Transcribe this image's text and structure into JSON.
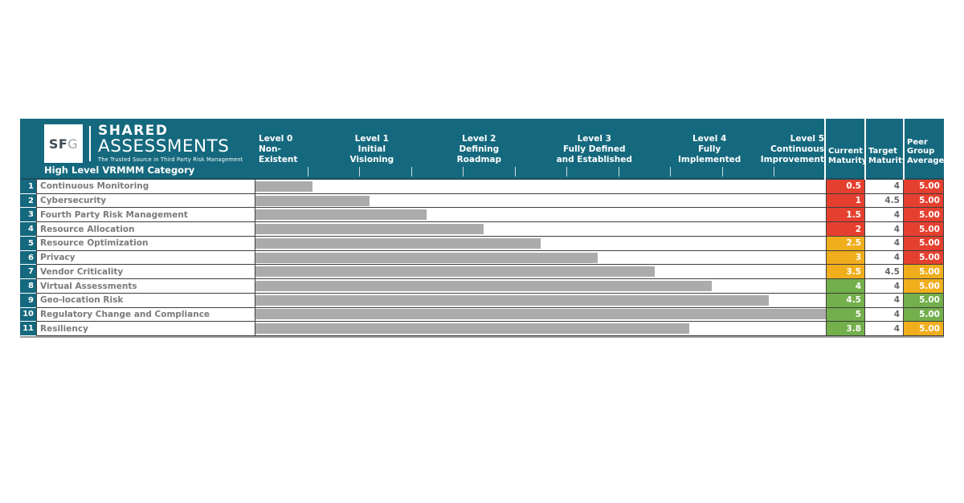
{
  "brand": {
    "logo_sf": "SF",
    "logo_g": "G",
    "title_line1": "SHARED",
    "title_line2": "ASSESSMENTS",
    "tagline": "The Trusted Source in Third Party Risk Management"
  },
  "header": {
    "category_label": "High Level VRMMM Category",
    "levels": [
      {
        "lines": [
          "Level 0",
          "Non-",
          "Existent"
        ]
      },
      {
        "lines": [
          "Level 1",
          "Initial",
          "Visioning"
        ]
      },
      {
        "lines": [
          "Level 2",
          "Defining",
          "Roadmap"
        ]
      },
      {
        "lines": [
          "Level 3",
          "Fully Defined",
          "and Established"
        ]
      },
      {
        "lines": [
          "Level 4",
          "Fully",
          "Implemented"
        ]
      },
      {
        "lines": [
          "Level 5",
          "Continuous",
          "Improvement"
        ]
      }
    ],
    "value_columns": [
      {
        "lines": [
          "Current",
          "Maturity"
        ]
      },
      {
        "lines": [
          "Target",
          "Maturity"
        ]
      },
      {
        "lines": [
          "Peer",
          "Group",
          "Average"
        ]
      }
    ]
  },
  "rows": [
    {
      "num": "1",
      "category": "Continuous Monitoring",
      "current": "0.5",
      "current_value": 0.5,
      "current_color": "red",
      "target": "4",
      "peer": "5.00",
      "peer_color": "red"
    },
    {
      "num": "2",
      "category": "Cybersecurity",
      "current": "1",
      "current_value": 1.0,
      "current_color": "red",
      "target": "4.5",
      "peer": "5.00",
      "peer_color": "red"
    },
    {
      "num": "3",
      "category": "Fourth Party Risk Management",
      "current": "1.5",
      "current_value": 1.5,
      "current_color": "red",
      "target": "4",
      "peer": "5.00",
      "peer_color": "red"
    },
    {
      "num": "4",
      "category": "Resource Allocation",
      "current": "2",
      "current_value": 2.0,
      "current_color": "red",
      "target": "4",
      "peer": "5.00",
      "peer_color": "red"
    },
    {
      "num": "5",
      "category": "Resource Optimization",
      "current": "2.5",
      "current_value": 2.5,
      "current_color": "amber",
      "target": "4",
      "peer": "5.00",
      "peer_color": "red"
    },
    {
      "num": "6",
      "category": "Privacy",
      "current": "3",
      "current_value": 3.0,
      "current_color": "amber",
      "target": "4",
      "peer": "5.00",
      "peer_color": "red"
    },
    {
      "num": "7",
      "category": "Vendor Criticality",
      "current": "3.5",
      "current_value": 3.5,
      "current_color": "amber",
      "target": "4.5",
      "peer": "5.00",
      "peer_color": "amber"
    },
    {
      "num": "8",
      "category": "Virtual Assessments",
      "current": "4",
      "current_value": 4.0,
      "current_color": "green",
      "target": "4",
      "peer": "5.00",
      "peer_color": "amber"
    },
    {
      "num": "9",
      "category": "Geo-location Risk",
      "current": "4.5",
      "current_value": 4.5,
      "current_color": "green",
      "target": "4",
      "peer": "5.00",
      "peer_color": "green"
    },
    {
      "num": "10",
      "category": "Regulatory Change and Compliance",
      "current": "5",
      "current_value": 5.0,
      "current_color": "green",
      "target": "4",
      "peer": "5.00",
      "peer_color": "green"
    },
    {
      "num": "11",
      "category": "Resiliency",
      "current": "3.8",
      "current_value": 3.8,
      "current_color": "green",
      "target": "4",
      "peer": "5.00",
      "peer_color": "amber"
    }
  ],
  "colors": {
    "teal": "#15697E",
    "header_border": "#1C4E5E",
    "red": "#E5402F",
    "amber": "#F0AE1D",
    "green": "#73AF4B",
    "bar_gray": "#ABABAB",
    "grid_line": "#3D3D3D",
    "category_text": "#7A7A7A",
    "target_text": "#666666",
    "tick": "#CFDFE4",
    "logo_sf": "#3E4B57",
    "logo_g": "#99A1A8",
    "bottom_line": "#9B9B9B"
  },
  "chart_data": {
    "type": "bar",
    "orientation": "horizontal",
    "title": "High Level VRMMM Category",
    "categories": [
      "Continuous Monitoring",
      "Cybersecurity",
      "Fourth Party Risk Management",
      "Resource Allocation",
      "Resource Optimization",
      "Privacy",
      "Vendor Criticality",
      "Virtual Assessments",
      "Geo-location Risk",
      "Regulatory Change and Compliance",
      "Resiliency"
    ],
    "series": [
      {
        "name": "Current Maturity",
        "values": [
          0.5,
          1,
          1.5,
          2,
          2.5,
          3,
          3.5,
          4,
          4.5,
          5,
          3.8
        ]
      },
      {
        "name": "Target Maturity",
        "values": [
          4,
          4.5,
          4,
          4,
          4,
          4,
          4.5,
          4,
          4,
          4,
          4
        ]
      },
      {
        "name": "Peer Group Average",
        "values": [
          5.0,
          5.0,
          5.0,
          5.0,
          5.0,
          5.0,
          5.0,
          5.0,
          5.0,
          5.0,
          5.0
        ]
      }
    ],
    "xlim": [
      0,
      5
    ],
    "x_axis_levels": [
      "Level 0 Non-Existent",
      "Level 1 Initial Visioning",
      "Level 2 Defining Roadmap",
      "Level 3 Fully Defined and Established",
      "Level 4 Fully Implemented",
      "Level 5 Continuous Improvement"
    ],
    "grid": false,
    "legend_position": "none"
  }
}
